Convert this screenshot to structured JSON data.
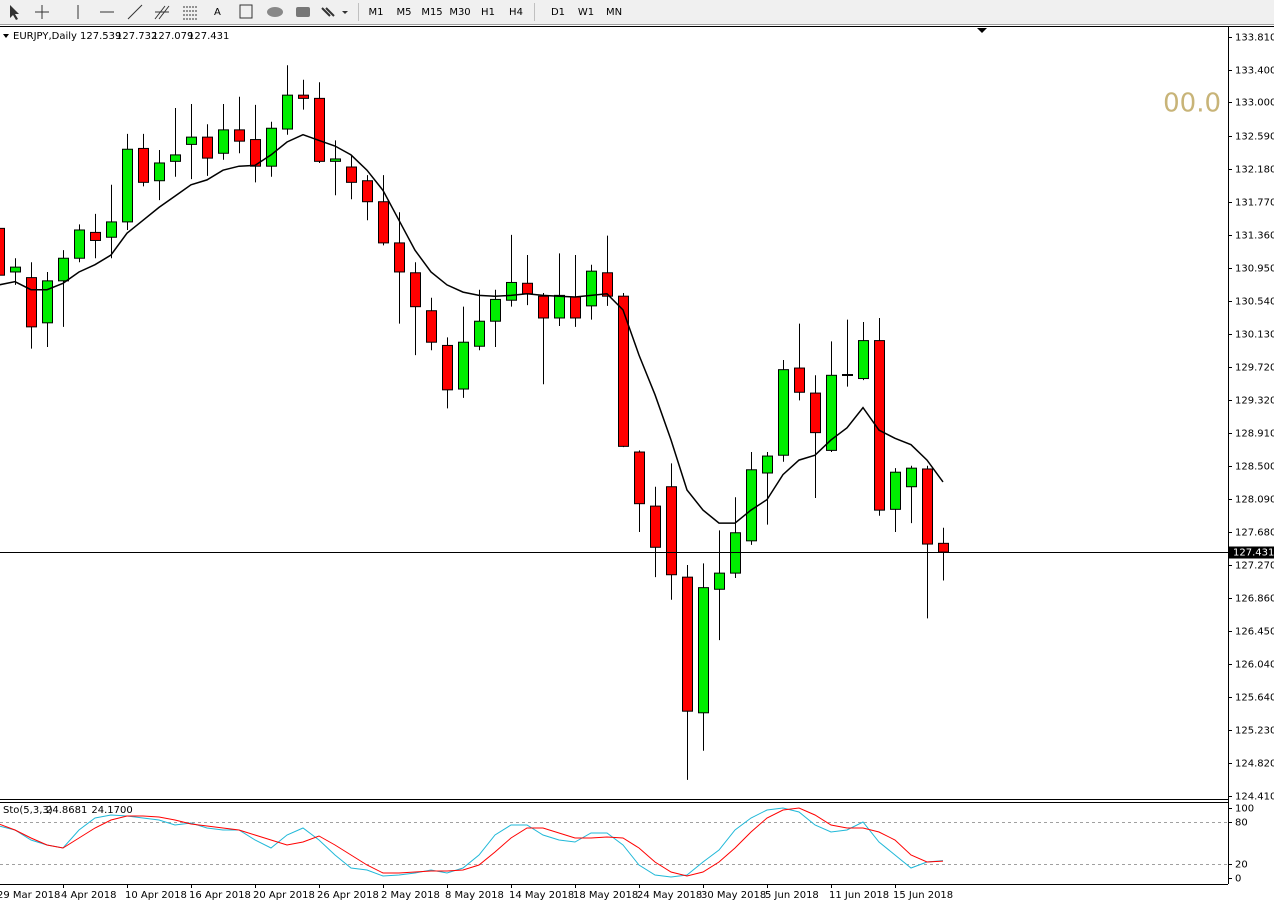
{
  "timeframes": [
    "M1",
    "M5",
    "M15",
    "M30",
    "H1",
    "H4",
    "D1",
    "W1",
    "MN"
  ],
  "annotation": "00.0",
  "chart_data": [
    {
      "type": "candlestick",
      "title": "EURJPY,Daily",
      "categories": [
        "29 Mar 2018",
        null,
        null,
        null,
        "4 Apr 2018",
        null,
        null,
        null,
        "10 Apr 2018",
        null,
        null,
        null,
        "16 Apr 2018",
        null,
        null,
        null,
        "20 Apr 2018",
        null,
        null,
        null,
        "26 Apr 2018",
        null,
        null,
        null,
        "2 May 2018",
        null,
        null,
        null,
        "8 May 2018",
        null,
        null,
        null,
        "14 May 2018",
        null,
        null,
        null,
        "18 May 2018",
        null,
        null,
        null,
        "24 May 2018",
        null,
        null,
        null,
        "30 May 2018",
        null,
        null,
        null,
        "5 Jun 2018",
        null,
        null,
        null,
        "11 Jun 2018",
        null,
        null,
        null,
        "15 Jun 2018",
        null,
        null,
        null
      ],
      "open": [
        131.44,
        130.9,
        130.83,
        130.27,
        130.79,
        131.07,
        131.39,
        131.33,
        131.52,
        132.43,
        132.03,
        132.27,
        132.48,
        132.57,
        132.37,
        132.66,
        132.54,
        132.21,
        132.67,
        133.09,
        133.05,
        132.27,
        132.2,
        132.03,
        131.77,
        131.26,
        130.89,
        130.42,
        129.99,
        129.45,
        129.98,
        130.29,
        130.55,
        130.76,
        130.6,
        130.33,
        130.59,
        130.48,
        130.89,
        130.6,
        128.67,
        128.0,
        128.24,
        127.12,
        125.44,
        126.97,
        127.17,
        127.57,
        128.41,
        128.63,
        129.71,
        129.4,
        128.69,
        129.63,
        129.58,
        130.05,
        127.96,
        128.24,
        128.46,
        127.539
      ],
      "high": [
        131.5,
        131.07,
        131.02,
        130.9,
        131.17,
        131.49,
        131.62,
        131.98,
        132.61,
        132.61,
        132.41,
        132.93,
        132.98,
        132.73,
        132.98,
        133.07,
        132.97,
        132.76,
        133.46,
        133.28,
        133.25,
        132.53,
        132.35,
        132.1,
        132.1,
        131.64,
        131.02,
        130.58,
        130.09,
        130.47,
        130.68,
        130.68,
        131.36,
        131.11,
        130.64,
        131.13,
        131.11,
        130.99,
        131.35,
        130.64,
        128.69,
        128.24,
        128.53,
        127.27,
        127.29,
        127.7,
        128.11,
        128.67,
        128.67,
        129.81,
        130.26,
        129.62,
        130.04,
        130.31,
        130.28,
        130.33,
        128.47,
        128.5,
        128.5,
        127.732
      ],
      "low": [
        130.7,
        130.74,
        129.95,
        129.97,
        130.22,
        131.02,
        131.07,
        131.07,
        131.42,
        131.96,
        131.79,
        132.08,
        132.05,
        132.09,
        132.29,
        132.37,
        132.01,
        132.08,
        132.6,
        132.91,
        132.25,
        131.85,
        131.8,
        131.54,
        131.23,
        130.26,
        129.87,
        129.93,
        129.21,
        129.34,
        129.93,
        129.97,
        130.47,
        130.49,
        129.51,
        130.23,
        130.22,
        130.31,
        130.48,
        128.73,
        127.68,
        127.12,
        126.84,
        124.61,
        124.97,
        126.34,
        127.11,
        127.52,
        127.77,
        128.55,
        129.31,
        128.1,
        128.67,
        129.48,
        129.56,
        127.88,
        127.68,
        127.79,
        126.61,
        127.079
      ],
      "close": [
        130.86,
        130.96,
        130.22,
        130.79,
        131.07,
        131.42,
        131.29,
        131.52,
        132.42,
        132.01,
        132.25,
        132.35,
        132.57,
        132.31,
        132.66,
        132.52,
        132.21,
        132.68,
        133.09,
        133.05,
        132.27,
        132.3,
        132.01,
        131.77,
        131.26,
        130.9,
        130.47,
        130.03,
        129.44,
        130.03,
        130.29,
        130.56,
        130.77,
        130.63,
        130.33,
        130.61,
        130.33,
        130.91,
        130.6,
        128.74,
        128.03,
        127.49,
        127.15,
        125.46,
        126.99,
        127.17,
        127.67,
        128.45,
        128.62,
        129.69,
        129.41,
        128.91,
        129.62,
        129.62,
        130.05,
        127.95,
        128.42,
        128.47,
        127.53,
        127.431
      ],
      "up_color": "#00ee00",
      "down_color": "#ff0000",
      "outline_color": "#000000",
      "ma": {
        "color": "#000000",
        "values": [
          130.74,
          130.78,
          130.68,
          130.68,
          130.76,
          130.9,
          130.99,
          131.11,
          131.38,
          131.54,
          131.7,
          131.84,
          131.98,
          132.04,
          132.16,
          132.21,
          132.22,
          132.35,
          132.51,
          132.6,
          132.53,
          132.46,
          132.35,
          132.16,
          131.91,
          131.54,
          131.17,
          130.9,
          130.74,
          130.65,
          130.61,
          130.6,
          130.61,
          130.63,
          130.61,
          130.6,
          130.59,
          130.61,
          130.63,
          130.43,
          129.87,
          129.38,
          128.82,
          128.2,
          127.95,
          127.79,
          127.79,
          127.95,
          128.08,
          128.39,
          128.57,
          128.63,
          128.82,
          128.97,
          129.22,
          128.94,
          128.84,
          128.76,
          128.57,
          128.3
        ]
      },
      "ylim": [
        124.36,
        133.934
      ],
      "yticks": [
        {
          "value": 133.81,
          "label": "133.810"
        },
        {
          "value": 133.4,
          "label": "133.400"
        },
        {
          "value": 133.0,
          "label": "133.000"
        },
        {
          "value": 132.59,
          "label": "132.590"
        },
        {
          "value": 132.18,
          "label": "132.180"
        },
        {
          "value": 131.77,
          "label": "131.770"
        },
        {
          "value": 131.36,
          "label": "131.360"
        },
        {
          "value": 130.95,
          "label": "130.950"
        },
        {
          "value": 130.54,
          "label": "130.540"
        },
        {
          "value": 130.13,
          "label": "130.130"
        },
        {
          "value": 129.72,
          "label": "129.720"
        },
        {
          "value": 129.32,
          "label": "129.320"
        },
        {
          "value": 128.91,
          "label": "128.910"
        },
        {
          "value": 128.5,
          "label": "128.500"
        },
        {
          "value": 128.09,
          "label": "128.090"
        },
        {
          "value": 127.68,
          "label": "127.680"
        },
        {
          "value": 127.27,
          "label": "127.270"
        },
        {
          "value": 126.86,
          "label": "126.860"
        },
        {
          "value": 126.45,
          "label": "126.450"
        },
        {
          "value": 126.04,
          "label": "126.040"
        },
        {
          "value": 125.64,
          "label": "125.640"
        },
        {
          "value": 125.23,
          "label": "125.230"
        },
        {
          "value": 124.82,
          "label": "124.820"
        },
        {
          "value": 124.41,
          "label": "124.410"
        }
      ],
      "grid": false
    },
    {
      "type": "line",
      "title": "Sto(5,3,3)",
      "series": [
        {
          "color": "#20b8d8",
          "last_label": "24.8681",
          "values": [
            74.3,
            68.6,
            54.3,
            47.1,
            42.9,
            68.6,
            85.7,
            90,
            88.6,
            85.7,
            82.9,
            75.7,
            78.6,
            71.4,
            68.6,
            68.6,
            54.3,
            42.9,
            61.4,
            71.4,
            54.3,
            32.9,
            14.3,
            11.4,
            2.9,
            4.3,
            7.1,
            11.4,
            7.1,
            14.3,
            32.9,
            61.4,
            75.7,
            75.7,
            61.4,
            54.3,
            51.4,
            64.3,
            64.3,
            47.1,
            18.6,
            4.3,
            1.4,
            4.3,
            22.9,
            40,
            68.6,
            85.7,
            97.1,
            100,
            94.3,
            75.7,
            65.7,
            68.6,
            80,
            51.4,
            32.9,
            14.3,
            22.9,
            24.8681
          ]
        },
        {
          "color": "#ff0000",
          "last_label": "24.1700",
          "values": [
            77.1,
            68.6,
            57.1,
            47.1,
            42.9,
            57.1,
            71.4,
            82.9,
            88.6,
            88.6,
            87.1,
            82.9,
            77.1,
            74.3,
            71.4,
            68.6,
            61.4,
            54.3,
            47.1,
            51.4,
            60,
            47.1,
            32.9,
            18.6,
            7.1,
            7.1,
            8.6,
            10,
            10,
            11.4,
            18.6,
            37.1,
            57.1,
            71.4,
            71.4,
            64.3,
            57.1,
            57.1,
            58.6,
            57.1,
            42.9,
            22.9,
            8.6,
            2.9,
            8.6,
            22.9,
            42.9,
            65.7,
            85.7,
            97.1,
            100,
            90,
            75.7,
            71.4,
            71.4,
            65.7,
            54.3,
            32.9,
            22.9,
            24.17
          ]
        }
      ],
      "levels": [
        80,
        20
      ],
      "ylim": [
        -8.57,
        107.14
      ],
      "yticks": [
        100,
        80,
        20,
        0
      ]
    }
  ]
}
